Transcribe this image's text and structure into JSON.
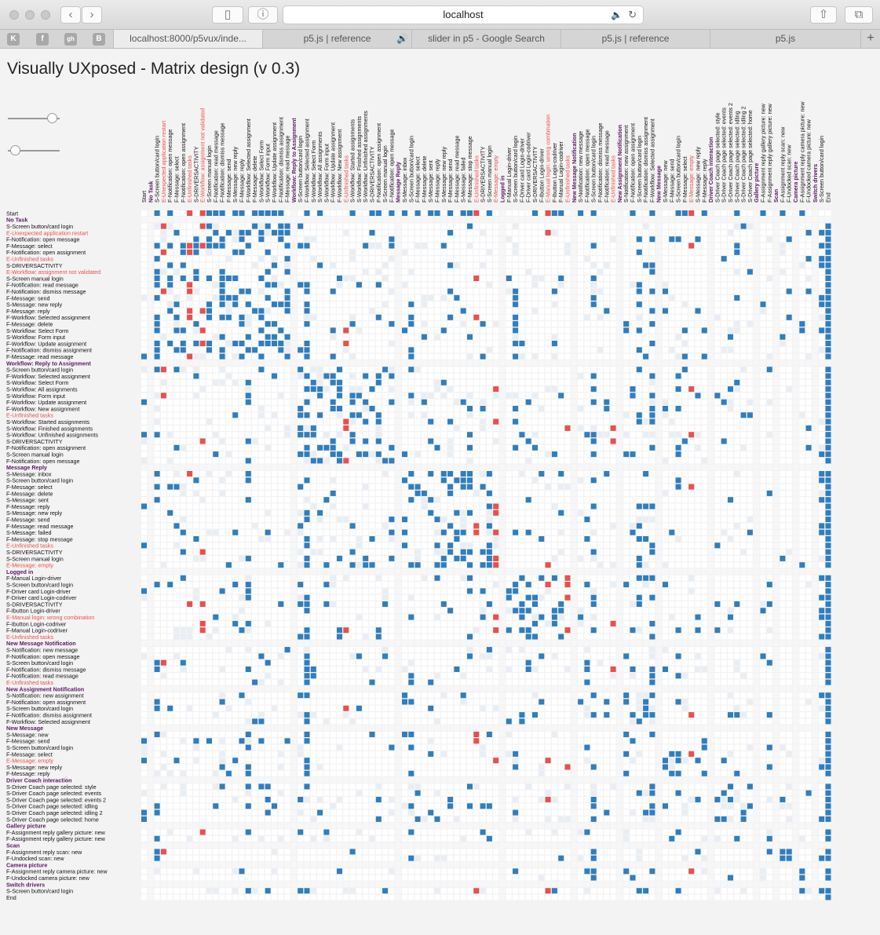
{
  "browser": {
    "url": "localhost",
    "tabs": [
      "localhost:8000/p5vux/inde...",
      "p5.js | reference",
      "slider in p5 - Google Search",
      "p5.js | reference",
      "p5.js"
    ],
    "active_tab": 0,
    "favicons": [
      "K",
      "f",
      "gh",
      "B"
    ]
  },
  "page": {
    "title": "Visually UXposed - Matrix design (v 0.3)"
  },
  "sliders": [
    {
      "value": 0.95
    },
    {
      "value": 0.05
    }
  ],
  "colors": {
    "filled": "#2f7ebf",
    "error": "#e8504e",
    "light": "#e9eef4",
    "empty": "#ffffff",
    "header": "#5a1a63",
    "error_text": "#e8504e",
    "text": "#111111"
  },
  "matrix": {
    "entries": [
      {
        "t": "s",
        "l": "Start"
      },
      {
        "t": "h",
        "l": "No Task"
      },
      {
        "t": "i",
        "l": "S-Screen button/card login"
      },
      {
        "t": "e",
        "l": "E-Unexpected application restart"
      },
      {
        "t": "i",
        "l": "F-Notification: open message"
      },
      {
        "t": "i",
        "l": "F-Message: select"
      },
      {
        "t": "i",
        "l": "F-Notification: open assignment"
      },
      {
        "t": "e",
        "l": "E-Unfinished tasks"
      },
      {
        "t": "i",
        "l": "S-DRIVERSACTIVITY"
      },
      {
        "t": "e",
        "l": "E-Workflow: assignment not validated"
      },
      {
        "t": "i",
        "l": "S-Screen manual login"
      },
      {
        "t": "i",
        "l": "F-Notification: read message"
      },
      {
        "t": "i",
        "l": "F-Notification: dismiss message"
      },
      {
        "t": "i",
        "l": "F-Message: send"
      },
      {
        "t": "i",
        "l": "S-Message: new reply"
      },
      {
        "t": "i",
        "l": "F-Message: reply"
      },
      {
        "t": "i",
        "l": "F-Workflow: Selected assignment"
      },
      {
        "t": "i",
        "l": "F-Message: delete"
      },
      {
        "t": "i",
        "l": "S-Workflow: Select Form"
      },
      {
        "t": "i",
        "l": "S-Workflow: Form input"
      },
      {
        "t": "i",
        "l": "F-Workflow: Update assignment"
      },
      {
        "t": "i",
        "l": "F-Notification: dismiss assignment"
      },
      {
        "t": "i",
        "l": "F-Message: read message"
      },
      {
        "t": "h",
        "l": "Workflow: Reply to Assignment"
      },
      {
        "t": "i",
        "l": "S-Screen button/card login"
      },
      {
        "t": "i",
        "l": "F-Workflow: Selected assignment"
      },
      {
        "t": "i",
        "l": "S-Workflow: Select Form"
      },
      {
        "t": "i",
        "l": "S-Workflow: All assignments"
      },
      {
        "t": "i",
        "l": "S-Workflow: Form input"
      },
      {
        "t": "i",
        "l": "F-Workflow: Update assignment"
      },
      {
        "t": "i",
        "l": "F-Workflow: New assignment"
      },
      {
        "t": "e",
        "l": "E-Unfinished tasks"
      },
      {
        "t": "i",
        "l": "S-Workflow: Started assignments"
      },
      {
        "t": "i",
        "l": "S-Workflow: Finished assignments"
      },
      {
        "t": "i",
        "l": "S-Workflow: Unfinished assignments"
      },
      {
        "t": "i",
        "l": "S-DRIVERSACTIVITY"
      },
      {
        "t": "i",
        "l": "F-Notification: open assignment"
      },
      {
        "t": "i",
        "l": "S-Screen manual login"
      },
      {
        "t": "i",
        "l": "F-Notification: open message"
      },
      {
        "t": "h",
        "l": "Message Reply"
      },
      {
        "t": "i",
        "l": "S-Message: inbox"
      },
      {
        "t": "i",
        "l": "S-Screen button/card login"
      },
      {
        "t": "i",
        "l": "F-Message: select"
      },
      {
        "t": "i",
        "l": "F-Message: delete"
      },
      {
        "t": "i",
        "l": "S-Message: sent"
      },
      {
        "t": "i",
        "l": "F-Message: reply"
      },
      {
        "t": "i",
        "l": "S-Message: new reply"
      },
      {
        "t": "i",
        "l": "F-Message: send"
      },
      {
        "t": "i",
        "l": "F-Message: read message"
      },
      {
        "t": "i",
        "l": "S-Message: failed"
      },
      {
        "t": "i",
        "l": "F-Message: stop message"
      },
      {
        "t": "e",
        "l": "E-Unfinished tasks"
      },
      {
        "t": "i",
        "l": "S-DRIVERSACTIVITY"
      },
      {
        "t": "i",
        "l": "S-Screen manual login"
      },
      {
        "t": "e",
        "l": "E-Message: empty"
      },
      {
        "t": "h",
        "l": "Logged in"
      },
      {
        "t": "i",
        "l": "F-Manual Login-driver"
      },
      {
        "t": "i",
        "l": "S-Screen button/card login"
      },
      {
        "t": "i",
        "l": "F-Driver card Login-driver"
      },
      {
        "t": "i",
        "l": "F-Driver card Login-codriver"
      },
      {
        "t": "i",
        "l": "S-DRIVERSACTIVITY"
      },
      {
        "t": "i",
        "l": "F-Ibutton Login-driver"
      },
      {
        "t": "e",
        "l": "E-Manual login: wrong combination"
      },
      {
        "t": "i",
        "l": "F-Ibutton Login-codriver"
      },
      {
        "t": "i",
        "l": "F-Manual Login-codriver"
      },
      {
        "t": "e",
        "l": "E-Unfinished tasks"
      },
      {
        "t": "h",
        "l": "New Message Notification"
      },
      {
        "t": "i",
        "l": "S-Notification: new message"
      },
      {
        "t": "i",
        "l": "F-Notification: open message"
      },
      {
        "t": "i",
        "l": "S-Screen button/card login"
      },
      {
        "t": "i",
        "l": "F-Notification: dismiss message"
      },
      {
        "t": "i",
        "l": "F-Notification: read message"
      },
      {
        "t": "e",
        "l": "E-Unfinished tasks"
      },
      {
        "t": "h",
        "l": "New Assignment Notification"
      },
      {
        "t": "i",
        "l": "S-Notification: new assignment"
      },
      {
        "t": "i",
        "l": "F-Notification: open assignment"
      },
      {
        "t": "i",
        "l": "S-Screen button/card login"
      },
      {
        "t": "i",
        "l": "F-Notification: dismiss assignment"
      },
      {
        "t": "i",
        "l": "F-Workflow: Selected assignment"
      },
      {
        "t": "h",
        "l": "New Message"
      },
      {
        "t": "i",
        "l": "S-Message: new"
      },
      {
        "t": "i",
        "l": "F-Message: send"
      },
      {
        "t": "i",
        "l": "S-Screen button/card login"
      },
      {
        "t": "i",
        "l": "F-Message: select"
      },
      {
        "t": "e",
        "l": "E-Message: empty"
      },
      {
        "t": "i",
        "l": "S-Message: new reply"
      },
      {
        "t": "i",
        "l": "F-Message: reply"
      },
      {
        "t": "h",
        "l": "Driver Coach interaction"
      },
      {
        "t": "i",
        "l": "S-Driver Coach page selected: style"
      },
      {
        "t": "i",
        "l": "S-Driver Coach page selected: events"
      },
      {
        "t": "i",
        "l": "S-Driver Coach page selected: events 2"
      },
      {
        "t": "i",
        "l": "S-Driver Coach page selected: idling"
      },
      {
        "t": "i",
        "l": "S-Driver Coach page selected: idling 2"
      },
      {
        "t": "i",
        "l": "S-Driver Coach page selected: home"
      },
      {
        "t": "h",
        "l": "Gallery picture"
      },
      {
        "t": "i",
        "l": "F-Assignment reply gallery picture: new"
      },
      {
        "t": "i",
        "l": "F-Assignment reply gallery picture: new"
      },
      {
        "t": "h",
        "l": "Scan"
      },
      {
        "t": "i",
        "l": "F-Assignment reply scan: new"
      },
      {
        "t": "i",
        "l": "F-Undocked scan: new"
      },
      {
        "t": "h",
        "l": "Camera picture"
      },
      {
        "t": "i",
        "l": "F-Assignment reply camera picture: new"
      },
      {
        "t": "i",
        "l": "F-Undocked camera picture: new"
      },
      {
        "t": "h",
        "l": "Switch drivers"
      },
      {
        "t": "i",
        "l": "S-Screen button/card login"
      },
      {
        "t": "x",
        "l": "End"
      }
    ]
  }
}
